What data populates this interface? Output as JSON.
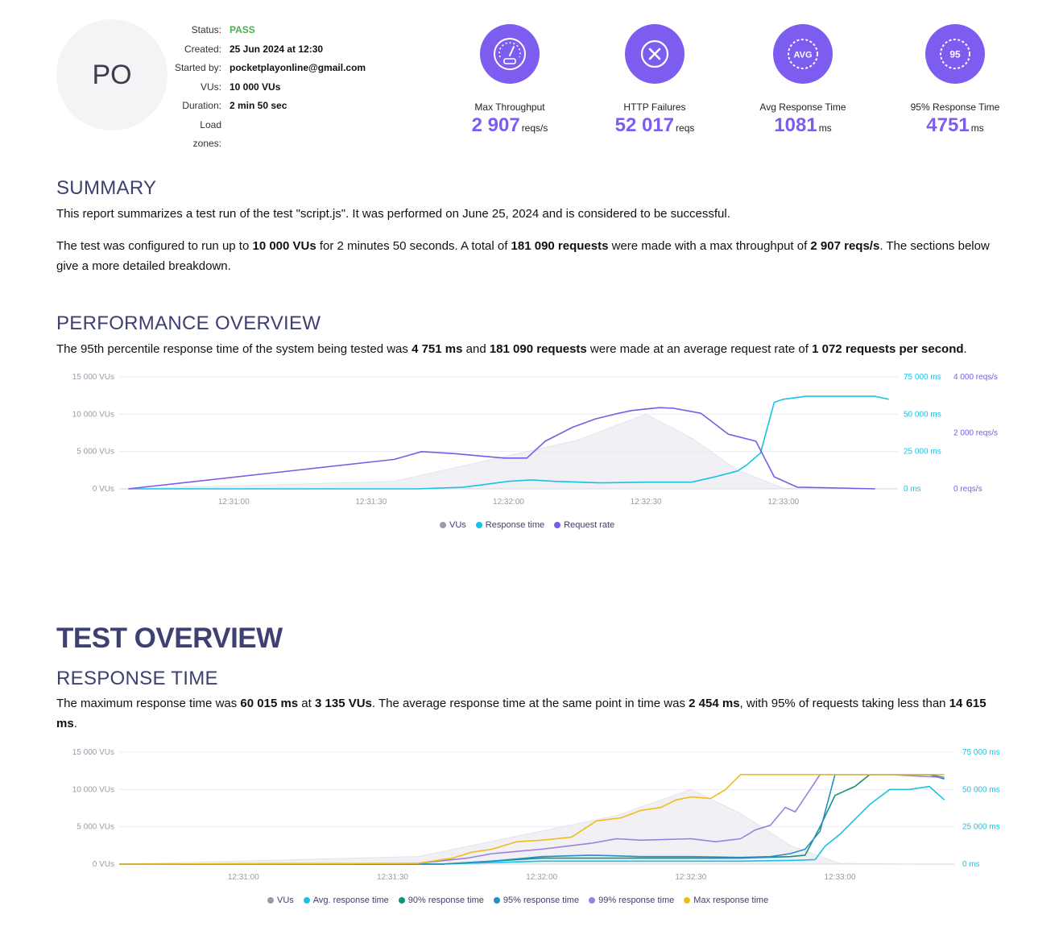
{
  "header": {
    "avatar_initials": "PO",
    "meta": [
      {
        "key": "Status:",
        "value": "PASS"
      },
      {
        "key": "Created:",
        "value": "25 Jun 2024 at 12:30"
      },
      {
        "key": "Started by:",
        "value": "pocketplayonline@gmail.com"
      },
      {
        "key": "VUs:",
        "value": "10 000 VUs"
      },
      {
        "key": "Duration:",
        "value": "2 min 50 sec"
      },
      {
        "key": "Load zones:",
        "value": ""
      }
    ],
    "kpis": [
      {
        "label": "Max Throughput",
        "value": "2 907",
        "unit": "reqs/s",
        "icon": "gauge-icon"
      },
      {
        "label": "HTTP Failures",
        "value": "52 017",
        "unit": "reqs",
        "icon": "close-icon"
      },
      {
        "label": "Avg Response Time",
        "value": "1081",
        "unit": "ms",
        "icon": "avg-icon",
        "icon_text": "AVG"
      },
      {
        "label": "95% Response Time",
        "value": "4751",
        "unit": "ms",
        "icon": "p95-icon",
        "icon_text": "95"
      }
    ]
  },
  "summary": {
    "title": "SUMMARY",
    "p1": "This report summarizes a test run of the test \"script.js\". It was performed on June 25, 2024 and is considered to be successful.",
    "p2": [
      {
        "t": "The test was configured to run up to ",
        "b": false
      },
      {
        "t": "10 000 VUs",
        "b": true
      },
      {
        "t": " for 2 minutes 50 seconds. A total of ",
        "b": false
      },
      {
        "t": "181 090 requests",
        "b": true
      },
      {
        "t": " were made with a max throughput of ",
        "b": false
      },
      {
        "t": "2 907 reqs/s",
        "b": true
      },
      {
        "t": ". The sections below give a more detailed breakdown.",
        "b": false
      }
    ]
  },
  "performance": {
    "title": "PERFORMANCE OVERVIEW",
    "text": [
      {
        "t": "The 95th percentile response time of the system being tested was ",
        "b": false
      },
      {
        "t": "4 751 ms",
        "b": true
      },
      {
        "t": " and ",
        "b": false
      },
      {
        "t": "181 090 requests",
        "b": true
      },
      {
        "t": " were made at an average request rate of ",
        "b": false
      },
      {
        "t": "1 072 requests per second",
        "b": true
      },
      {
        "t": ".",
        "b": false
      }
    ],
    "legend": [
      "VUs",
      "Response time",
      "Request rate"
    ]
  },
  "test_overview": {
    "title": "TEST OVERVIEW",
    "response_title": "RESPONSE TIME",
    "text": [
      {
        "t": "The maximum response time was ",
        "b": false
      },
      {
        "t": "60 015 ms",
        "b": true
      },
      {
        "t": " at ",
        "b": false
      },
      {
        "t": "3 135 VUs",
        "b": true
      },
      {
        "t": ". The average response time at the same point in time was ",
        "b": false
      },
      {
        "t": "2 454 ms",
        "b": true
      },
      {
        "t": ", with 95% of requests taking less than ",
        "b": false
      },
      {
        "t": "14 615 ms",
        "b": true
      },
      {
        "t": ".",
        "b": false
      }
    ],
    "legend": [
      "VUs",
      "Avg. response time",
      "90% response time",
      "95% response time",
      "99% response time",
      "Max response time"
    ]
  },
  "colors": {
    "accent": "#7d5cf0",
    "vus": "#9a9ab0",
    "response": "#19c3e6",
    "request_rate": "#7b5ce8",
    "p90": "#15937a",
    "p95": "#2a8dc9",
    "p99": "#9b7fe0",
    "max": "#f0bd18",
    "pass": "#4caf50"
  },
  "chart_data": [
    {
      "type": "line",
      "x_ticks": [
        "12:31:00",
        "12:31:30",
        "12:32:00",
        "12:32:30",
        "12:33:00"
      ],
      "x_tick_seconds": [
        60,
        90,
        120,
        150,
        180
      ],
      "xlim": [
        35,
        205
      ],
      "y_left": {
        "ticks": [
          "0 VUs",
          "5 000 VUs",
          "10 000 VUs",
          "15 000 VUs"
        ],
        "lim": [
          0,
          15000
        ]
      },
      "y_right_1": {
        "ticks": [
          "0 ms",
          "25 000 ms",
          "50 000 ms",
          "75 000 ms"
        ],
        "lim": [
          0,
          75000
        ]
      },
      "y_right_2": {
        "ticks": [
          "0 reqs/s",
          "2 000 reqs/s",
          "4 000 reqs/s"
        ],
        "lim": [
          0,
          4000
        ]
      },
      "series": [
        {
          "name": "VUs",
          "axis": "left",
          "area": true,
          "x": [
            37,
            95,
            135,
            150,
            160,
            170,
            180,
            195
          ],
          "y": [
            0,
            1000,
            6500,
            10000,
            6800,
            2500,
            100,
            0
          ]
        },
        {
          "name": "Response time",
          "axis": "right1",
          "x": [
            37,
            100,
            110,
            115,
            120,
            125,
            130,
            140,
            150,
            160,
            165,
            170,
            172,
            175,
            178,
            180,
            185,
            190,
            200,
            203
          ],
          "y": [
            0,
            0,
            1000,
            3000,
            5000,
            6000,
            5000,
            4000,
            4500,
            4500,
            8000,
            12000,
            16000,
            24000,
            58000,
            60000,
            62000,
            62000,
            62000,
            60000
          ]
        },
        {
          "name": "Request rate",
          "axis": "right2",
          "x": [
            37,
            95,
            101,
            108,
            119,
            124,
            128,
            134,
            139,
            144,
            147,
            151,
            153,
            156,
            162,
            168,
            174,
            178,
            183,
            200
          ],
          "y": [
            0,
            1050,
            1330,
            1260,
            1100,
            1100,
            1700,
            2200,
            2500,
            2700,
            2800,
            2870,
            2900,
            2880,
            2700,
            1950,
            1700,
            430,
            60,
            0
          ]
        }
      ],
      "legend": [
        "VUs",
        "Response time",
        "Request rate"
      ]
    },
    {
      "type": "line",
      "x_ticks": [
        "12:31:00",
        "12:31:30",
        "12:32:00",
        "12:32:30",
        "12:33:00"
      ],
      "x_tick_seconds": [
        60,
        90,
        120,
        150,
        180
      ],
      "xlim": [
        35,
        203
      ],
      "y_left": {
        "ticks": [
          "0 VUs",
          "5 000 VUs",
          "10 000 VUs",
          "15 000 VUs"
        ],
        "lim": [
          0,
          15000
        ]
      },
      "y_right_1": {
        "ticks": [
          "0 ms",
          "25 000 ms",
          "50 000 ms",
          "75 000 ms"
        ],
        "lim": [
          0,
          75000
        ]
      },
      "series": [
        {
          "name": "VUs",
          "axis": "left",
          "area": true,
          "x": [
            35,
            95,
            135,
            150,
            160,
            170,
            180,
            195
          ],
          "y": [
            0,
            1000,
            6500,
            10000,
            6800,
            2500,
            100,
            0
          ]
        },
        {
          "name": "Avg. response time",
          "axis": "right1",
          "x": [
            35,
            100,
            110,
            120,
            140,
            160,
            170,
            175,
            177,
            180,
            183,
            186,
            190,
            194,
            198,
            201
          ],
          "y": [
            0,
            0,
            1000,
            2000,
            2000,
            2000,
            2500,
            3000,
            12000,
            20000,
            30000,
            40000,
            50000,
            50000,
            52000,
            43000
          ]
        },
        {
          "name": "90% response time",
          "axis": "right1",
          "x": [
            35,
            100,
            110,
            120,
            140,
            160,
            170,
            173,
            176,
            179,
            183,
            186,
            190,
            194,
            198,
            201
          ],
          "y": [
            0,
            0,
            2000,
            4000,
            4000,
            4000,
            5000,
            6000,
            25000,
            46000,
            52000,
            60000,
            60000,
            60000,
            60000,
            58000
          ]
        },
        {
          "name": "95% response time",
          "axis": "right1",
          "x": [
            35,
            100,
            110,
            120,
            130,
            140,
            150,
            160,
            166,
            170,
            173,
            176,
            179,
            183,
            190,
            198,
            201
          ],
          "y": [
            0,
            0,
            2000,
            5000,
            6000,
            5000,
            5000,
            4500,
            5000,
            7000,
            10000,
            22000,
            60000,
            60000,
            60000,
            60000,
            57000
          ]
        },
        {
          "name": "99% response time",
          "axis": "right1",
          "x": [
            35,
            95,
            105,
            110,
            120,
            130,
            135,
            140,
            150,
            155,
            160,
            163,
            166,
            169,
            171,
            174,
            176,
            178,
            190,
            201
          ],
          "y": [
            0,
            500,
            4000,
            7000,
            10000,
            14000,
            17000,
            16000,
            17000,
            15000,
            17000,
            23000,
            26000,
            38000,
            35000,
            50000,
            60000,
            60000,
            60000,
            58000
          ]
        },
        {
          "name": "Max response time",
          "axis": "right1",
          "x": [
            35,
            95,
            102,
            106,
            110,
            115,
            120,
            126,
            131,
            136,
            140,
            144,
            147,
            150,
            154,
            157,
            160,
            180,
            201
          ],
          "y": [
            0,
            500,
            4000,
            8000,
            10000,
            15000,
            16000,
            18000,
            29000,
            31000,
            36000,
            38000,
            43000,
            45000,
            44000,
            50000,
            60000,
            60000,
            60000
          ]
        }
      ],
      "legend": [
        "VUs",
        "Avg. response time",
        "90% response time",
        "95% response time",
        "99% response time",
        "Max response time"
      ]
    }
  ]
}
